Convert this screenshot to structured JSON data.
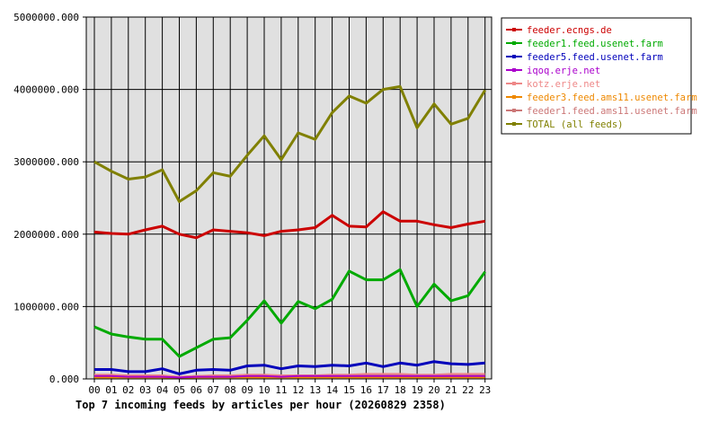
{
  "caption": "Top 7 incoming feeds by articles per hour (20260829 2358)",
  "chart_data": {
    "type": "line",
    "title": "Top 7 incoming feeds by articles per hour (20260829 2358)",
    "xlabel": "",
    "ylabel": "",
    "categories": [
      "00",
      "01",
      "02",
      "03",
      "04",
      "05",
      "06",
      "07",
      "08",
      "09",
      "10",
      "11",
      "12",
      "13",
      "14",
      "15",
      "16",
      "17",
      "18",
      "19",
      "20",
      "21",
      "22",
      "23"
    ],
    "y_tick_labels": [
      "0.000",
      "1000000.000",
      "2000000.000",
      "3000000.000",
      "4000000.000",
      "5000000.000"
    ],
    "y_ticks": [
      0,
      1000000,
      2000000,
      3000000,
      4000000,
      5000000
    ],
    "ylim": [
      0,
      5000000
    ],
    "grid": true,
    "legend_position": "right",
    "series": [
      {
        "name": "feeder.ecngs.de",
        "color": "#cc0000",
        "values": [
          2030000,
          2010000,
          2000000,
          2060000,
          2110000,
          2000000,
          1950000,
          2060000,
          2040000,
          2020000,
          1980000,
          2040000,
          2060000,
          2090000,
          2260000,
          2110000,
          2100000,
          2310000,
          2180000,
          2180000,
          2130000,
          2090000,
          2140000,
          2180000
        ]
      },
      {
        "name": "feeder1.feed.usenet.farm",
        "color": "#00aa00",
        "values": [
          720000,
          620000,
          580000,
          550000,
          550000,
          310000,
          430000,
          550000,
          570000,
          810000,
          1080000,
          770000,
          1070000,
          970000,
          1100000,
          1490000,
          1370000,
          1370000,
          1510000,
          1000000,
          1310000,
          1080000,
          1150000,
          1480000
        ]
      },
      {
        "name": "feeder5.feed.usenet.farm",
        "color": "#0000bb",
        "values": [
          130000,
          130000,
          100000,
          100000,
          140000,
          70000,
          120000,
          130000,
          120000,
          180000,
          190000,
          140000,
          180000,
          170000,
          190000,
          180000,
          220000,
          170000,
          220000,
          190000,
          240000,
          210000,
          200000,
          220000
        ]
      },
      {
        "name": "iqoq.erje.net",
        "color": "#aa00cc",
        "values": [
          40000,
          40000,
          30000,
          30000,
          30000,
          20000,
          30000,
          30000,
          30000,
          40000,
          40000,
          30000,
          40000,
          40000,
          40000,
          40000,
          40000,
          40000,
          40000,
          40000,
          40000,
          40000,
          40000,
          40000
        ]
      },
      {
        "name": "kotz.erje.net",
        "color": "#ee8888",
        "values": [
          60000,
          60000,
          50000,
          50000,
          50000,
          30000,
          40000,
          50000,
          50000,
          60000,
          60000,
          50000,
          50000,
          50000,
          60000,
          60000,
          70000,
          70000,
          70000,
          60000,
          60000,
          70000,
          70000,
          70000
        ]
      },
      {
        "name": "feeder3.feed.ams11.usenet.farm",
        "color": "#ee8800",
        "values": [
          20000,
          20000,
          20000,
          20000,
          20000,
          10000,
          20000,
          20000,
          20000,
          20000,
          20000,
          20000,
          20000,
          20000,
          20000,
          20000,
          20000,
          20000,
          20000,
          20000,
          20000,
          20000,
          20000,
          20000
        ]
      },
      {
        "name": "feeder1.feed.ams11.usenet.farm",
        "color": "#cc7777",
        "values": [
          50000,
          50000,
          40000,
          40000,
          40000,
          30000,
          40000,
          40000,
          40000,
          50000,
          50000,
          40000,
          40000,
          40000,
          50000,
          50000,
          50000,
          50000,
          50000,
          50000,
          50000,
          50000,
          50000,
          50000
        ]
      },
      {
        "name": "TOTAL (all feeds)",
        "color": "#808000",
        "values": [
          3000000,
          2870000,
          2760000,
          2790000,
          2890000,
          2450000,
          2600000,
          2850000,
          2800000,
          3090000,
          3360000,
          3030000,
          3400000,
          3310000,
          3680000,
          3910000,
          3810000,
          4000000,
          4040000,
          3470000,
          3800000,
          3520000,
          3600000,
          3990000
        ]
      }
    ]
  }
}
